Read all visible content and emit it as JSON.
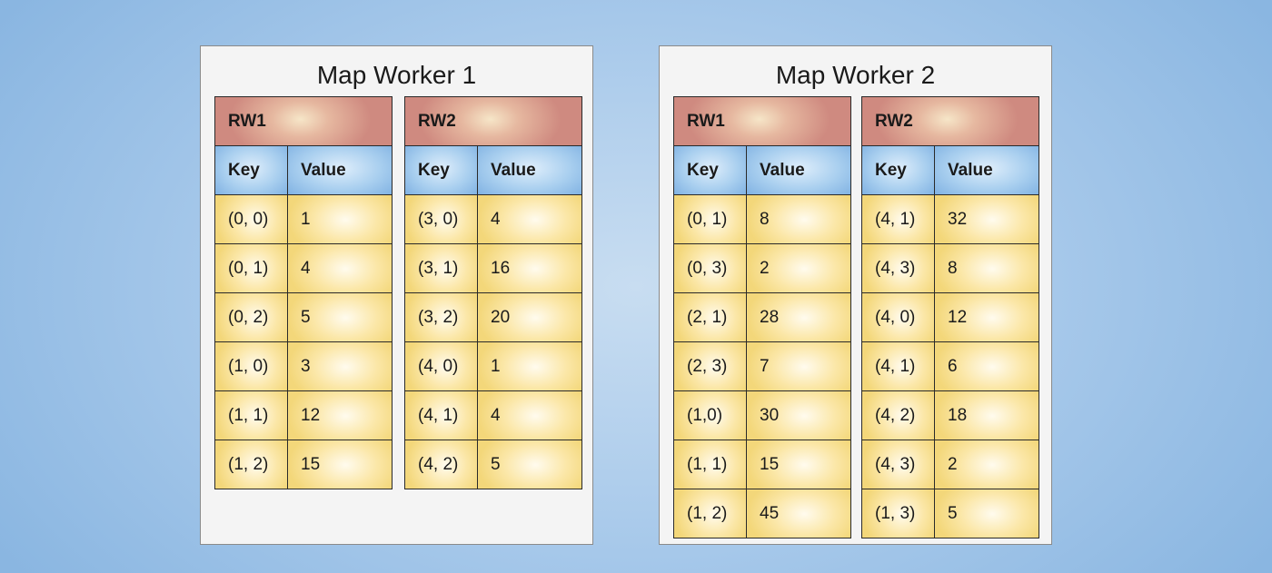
{
  "workers": [
    {
      "title": "Map Worker 1",
      "tables": [
        {
          "title": "RW1",
          "headers": [
            "Key",
            "Value"
          ],
          "rows": [
            [
              "(0, 0)",
              "1"
            ],
            [
              "(0, 1)",
              "4"
            ],
            [
              "(0, 2)",
              "5"
            ],
            [
              "(1, 0)",
              "3"
            ],
            [
              "(1, 1)",
              "12"
            ],
            [
              "(1, 2)",
              "15"
            ]
          ]
        },
        {
          "title": "RW2",
          "headers": [
            "Key",
            "Value"
          ],
          "rows": [
            [
              "(3, 0)",
              "4"
            ],
            [
              "(3, 1)",
              "16"
            ],
            [
              "(3, 2)",
              "20"
            ],
            [
              "(4, 0)",
              "1"
            ],
            [
              "(4, 1)",
              "4"
            ],
            [
              "(4, 2)",
              "5"
            ]
          ]
        }
      ]
    },
    {
      "title": "Map Worker 2",
      "tables": [
        {
          "title": "RW1",
          "headers": [
            "Key",
            "Value"
          ],
          "rows": [
            [
              "(0, 1)",
              "8"
            ],
            [
              "(0, 3)",
              "2"
            ],
            [
              "(2, 1)",
              "28"
            ],
            [
              "(2, 3)",
              "7"
            ],
            [
              "(1,0)",
              "30"
            ],
            [
              "(1, 1)",
              "15"
            ],
            [
              "(1, 2)",
              "45"
            ]
          ]
        },
        {
          "title": "RW2",
          "headers": [
            "Key",
            "Value"
          ],
          "rows": [
            [
              "(4, 1)",
              "32"
            ],
            [
              "(4, 3)",
              "8"
            ],
            [
              "(4, 0)",
              "12"
            ],
            [
              "(4, 1)",
              "6"
            ],
            [
              "(4, 2)",
              "18"
            ],
            [
              "(4, 3)",
              "2"
            ],
            [
              "(1, 3)",
              "5"
            ]
          ]
        }
      ]
    }
  ]
}
